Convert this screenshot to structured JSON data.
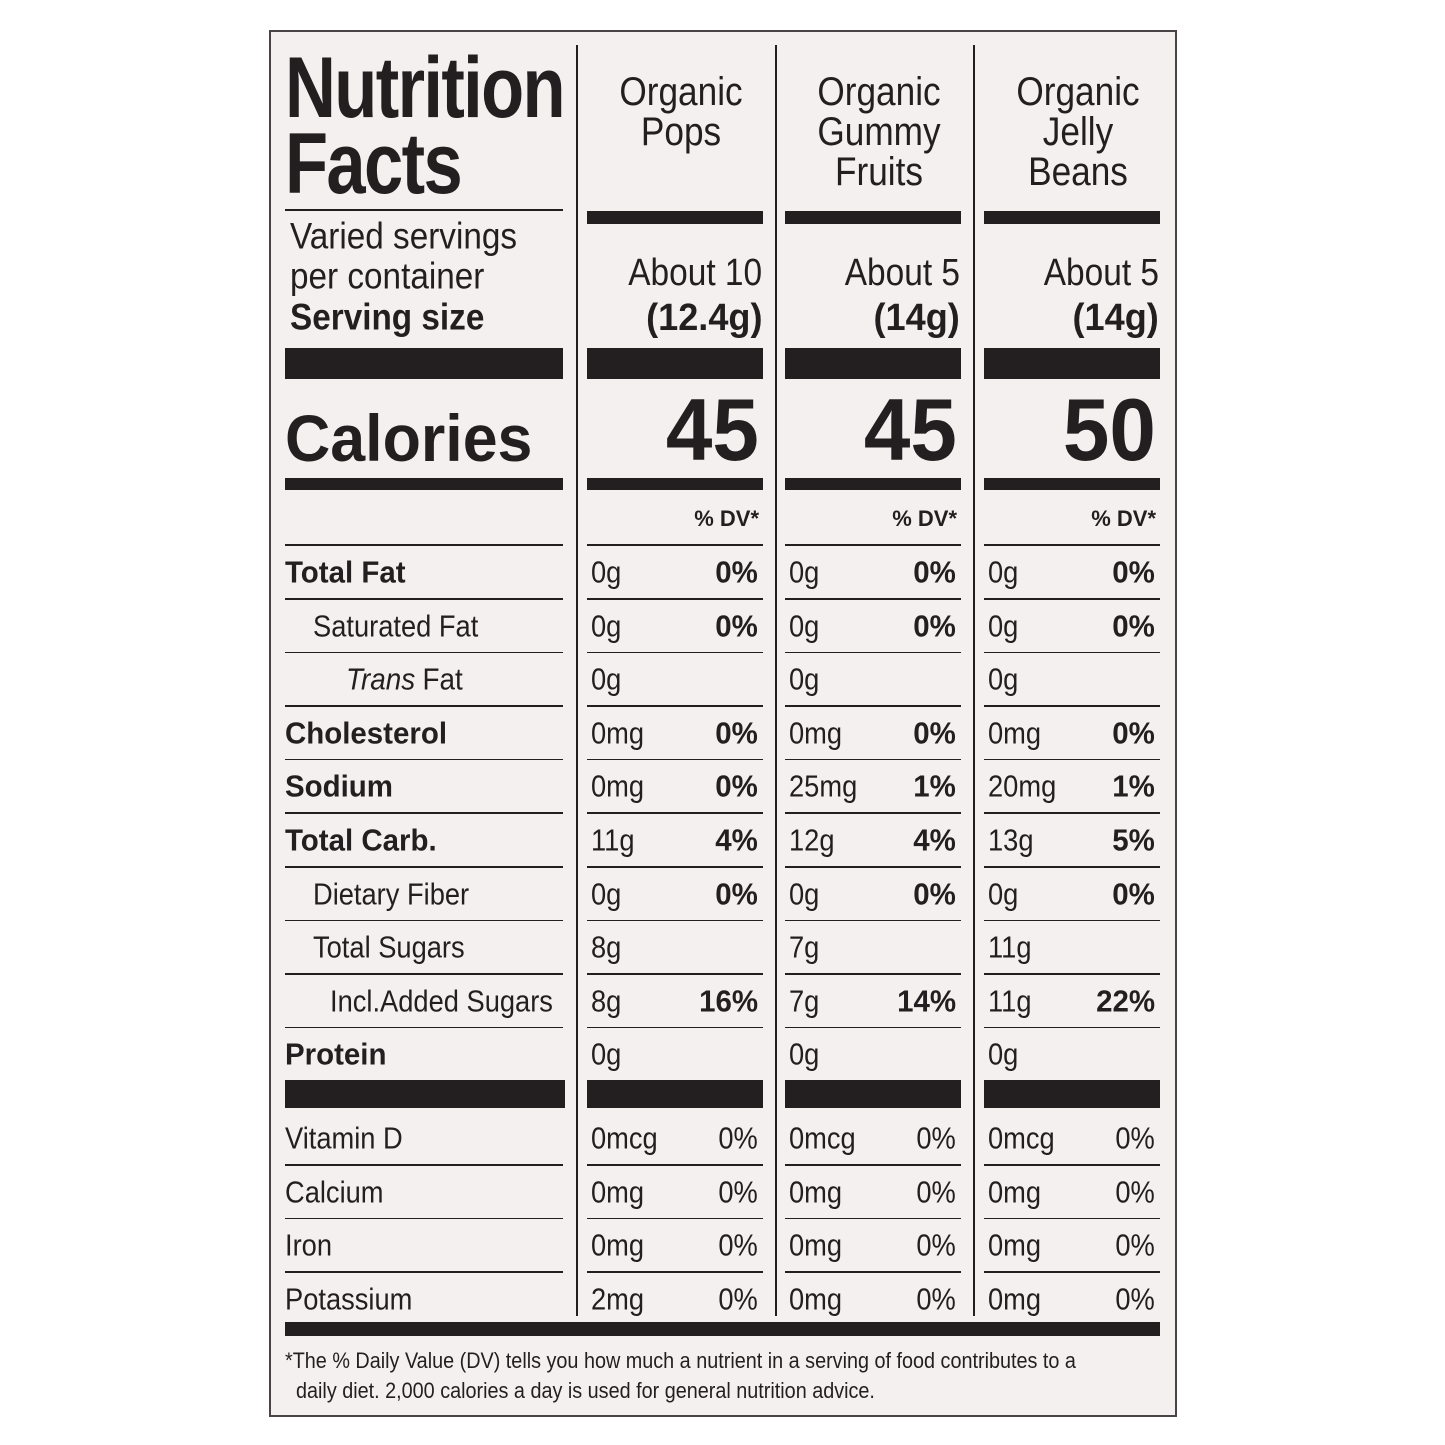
{
  "title": [
    "Nutrition",
    "Facts"
  ],
  "servings_label": [
    "Varied servings",
    "per container"
  ],
  "serving_size_label": "Serving size",
  "calories_label": "Calories",
  "dv_header": "% DV*",
  "products": [
    {
      "name": [
        "Organic",
        "Pops"
      ],
      "servings": "About 10",
      "serving_size": "(12.4g)",
      "calories": 45,
      "amounts": [
        "0g",
        "0g",
        "0g",
        "0mg",
        "0mg",
        "11g",
        "0g",
        "8g",
        "8g",
        "0g"
      ],
      "dvs": [
        "0%",
        "0%",
        null,
        "0%",
        "0%",
        "4%",
        "0%",
        null,
        "16%",
        null
      ],
      "vitamin_amounts": [
        "0mcg",
        "0mg",
        "0mg",
        "2mg"
      ],
      "vitamin_dvs": [
        "0%",
        "0%",
        "0%",
        "0%"
      ]
    },
    {
      "name": [
        "Organic",
        "Gummy",
        "Fruits"
      ],
      "servings": "About 5",
      "serving_size": "(14g)",
      "calories": 45,
      "amounts": [
        "0g",
        "0g",
        "0g",
        "0mg",
        "25mg",
        "12g",
        "0g",
        "7g",
        "7g",
        "0g"
      ],
      "dvs": [
        "0%",
        "0%",
        null,
        "0%",
        "1%",
        "4%",
        "0%",
        null,
        "14%",
        null
      ],
      "vitamin_amounts": [
        "0mcg",
        "0mg",
        "0mg",
        "0mg"
      ],
      "vitamin_dvs": [
        "0%",
        "0%",
        "0%",
        "0%"
      ]
    },
    {
      "name": [
        "Organic",
        "Jelly",
        "Beans"
      ],
      "servings": "About 5",
      "serving_size": "(14g)",
      "calories": 50,
      "amounts": [
        "0g",
        "0g",
        "0g",
        "0mg",
        "20mg",
        "13g",
        "0g",
        "11g",
        "11g",
        "0g"
      ],
      "dvs": [
        "0%",
        "0%",
        null,
        "0%",
        "1%",
        "5%",
        "0%",
        null,
        "22%",
        null
      ],
      "vitamin_amounts": [
        "0mcg",
        "0mg",
        "0mg",
        "0mg"
      ],
      "vitamin_dvs": [
        "0%",
        "0%",
        "0%",
        "0%"
      ]
    }
  ],
  "nutrients": [
    {
      "label": "Total Fat",
      "style": "bold"
    },
    {
      "label": "Saturated Fat",
      "style": "indent"
    },
    {
      "label_italic": "Trans",
      "label": "Fat",
      "style": "indent"
    },
    {
      "label": "Cholesterol",
      "style": "bold"
    },
    {
      "label": "Sodium",
      "style": "bold"
    },
    {
      "label": "Total Carb.",
      "style": "bold"
    },
    {
      "label": "Dietary Fiber",
      "style": "indent"
    },
    {
      "label": "Total Sugars",
      "style": "indent"
    },
    {
      "label": "Incl.Added Sugars",
      "style": "indent2"
    },
    {
      "label": "Protein",
      "style": "bold"
    }
  ],
  "vitamins": [
    "Vitamin D",
    "Calcium",
    "Iron",
    "Potassium"
  ],
  "footnote": [
    "*The % Daily Value (DV) tells you how much a nutrient in a serving of food contributes to a",
    "daily diet. 2,000 calories a day is used for general nutrition advice."
  ]
}
